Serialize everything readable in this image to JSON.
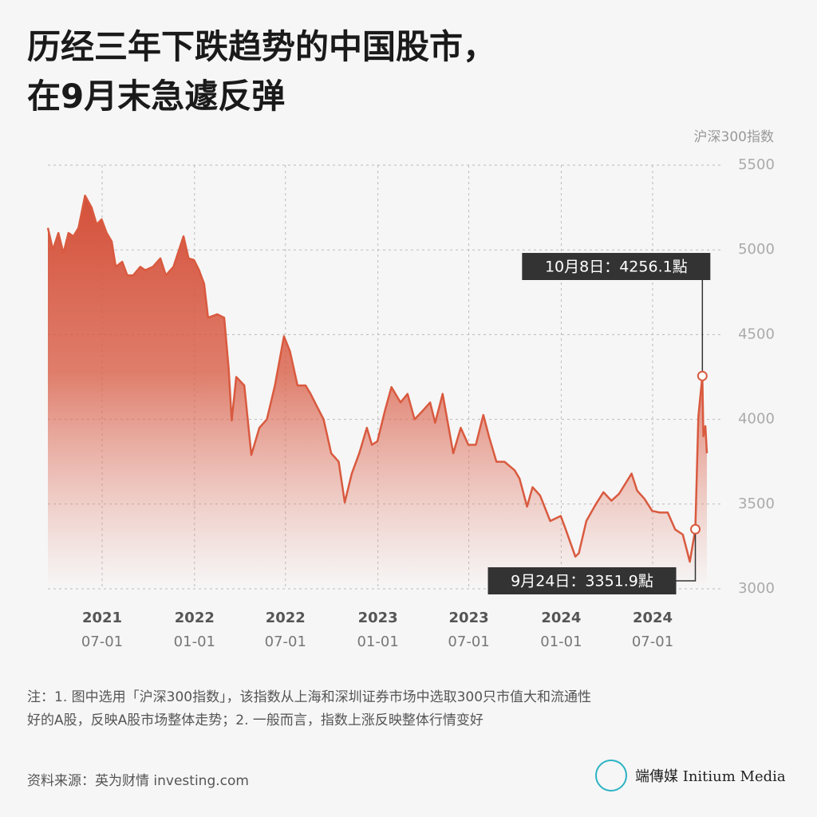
{
  "chart_data": {
    "type": "area",
    "title": [
      "历经三年下跌趋势的中国股市，",
      "在9月末急遽反弹"
    ],
    "ylabel": "沪深300指数",
    "color": "#d95a3f",
    "grid": true,
    "ylim": [
      3000,
      5500
    ],
    "yticks": [
      3000,
      3500,
      4000,
      4500,
      5000,
      5500
    ],
    "xlim": [
      "2021-03-15",
      "2024-10-17"
    ],
    "xticks": [
      {
        "value": "2021-07-01",
        "year": "2021",
        "label": "07-01"
      },
      {
        "value": "2022-01-01",
        "year": "2022",
        "label": "01-01"
      },
      {
        "value": "2022-07-01",
        "year": "2022",
        "label": "07-01"
      },
      {
        "value": "2023-01-01",
        "year": "2023",
        "label": "01-01"
      },
      {
        "value": "2023-07-01",
        "year": "2023",
        "label": "07-01"
      },
      {
        "value": "2024-01-01",
        "year": "2024",
        "label": "01-01"
      },
      {
        "value": "2024-07-01",
        "year": "2024",
        "label": "07-01"
      }
    ],
    "x": [
      "2021-03-15",
      "2021-03-25",
      "2021-04-05",
      "2021-04-15",
      "2021-04-25",
      "2021-05-05",
      "2021-05-15",
      "2021-05-28",
      "2021-06-10",
      "2021-06-20",
      "2021-06-30",
      "2021-07-10",
      "2021-07-20",
      "2021-07-28",
      "2021-08-10",
      "2021-08-20",
      "2021-09-01",
      "2021-09-15",
      "2021-09-25",
      "2021-10-10",
      "2021-10-25",
      "2021-11-05",
      "2021-11-20",
      "2021-12-10",
      "2021-12-20",
      "2021-12-31",
      "2022-01-10",
      "2022-01-20",
      "2022-01-28",
      "2022-02-15",
      "2022-03-01",
      "2022-03-10",
      "2022-03-16",
      "2022-03-25",
      "2022-04-10",
      "2022-04-24",
      "2022-05-10",
      "2022-05-25",
      "2022-06-10",
      "2022-06-28",
      "2022-07-10",
      "2022-07-25",
      "2022-08-10",
      "2022-08-20",
      "2022-09-01",
      "2022-09-15",
      "2022-09-30",
      "2022-10-15",
      "2022-10-27",
      "2022-11-10",
      "2022-11-25",
      "2022-12-10",
      "2022-12-20",
      "2022-12-31",
      "2023-01-15",
      "2023-01-28",
      "2023-02-15",
      "2023-03-01",
      "2023-03-15",
      "2023-03-31",
      "2023-04-15",
      "2023-04-25",
      "2023-05-10",
      "2023-05-31",
      "2023-06-15",
      "2023-06-30",
      "2023-07-15",
      "2023-07-30",
      "2023-08-10",
      "2023-08-25",
      "2023-09-10",
      "2023-09-30",
      "2023-10-10",
      "2023-10-25",
      "2023-11-05",
      "2023-11-20",
      "2023-12-10",
      "2023-12-31",
      "2024-01-10",
      "2024-01-29",
      "2024-02-05",
      "2024-02-20",
      "2024-03-10",
      "2024-03-25",
      "2024-04-10",
      "2024-04-25",
      "2024-05-20",
      "2024-05-31",
      "2024-06-15",
      "2024-06-30",
      "2024-07-15",
      "2024-07-31",
      "2024-08-15",
      "2024-08-30",
      "2024-09-13",
      "2024-09-24",
      "2024-09-30",
      "2024-10-08",
      "2024-10-10",
      "2024-10-14",
      "2024-10-17"
    ],
    "values": [
      5130,
      5000,
      5100,
      4980,
      5100,
      5080,
      5130,
      5320,
      5250,
      5150,
      5180,
      5100,
      5050,
      4900,
      4930,
      4850,
      4850,
      4900,
      4880,
      4900,
      4950,
      4850,
      4900,
      5080,
      4950,
      4940,
      4880,
      4800,
      4600,
      4620,
      4600,
      4300,
      3993,
      4250,
      4200,
      3790,
      3950,
      4000,
      4200,
      4490,
      4400,
      4200,
      4200,
      4150,
      4080,
      4000,
      3800,
      3750,
      3510,
      3680,
      3800,
      3950,
      3850,
      3870,
      4050,
      4190,
      4100,
      4150,
      4000,
      4050,
      4100,
      3980,
      4150,
      3800,
      3950,
      3850,
      3850,
      4026,
      3900,
      3750,
      3750,
      3700,
      3650,
      3485,
      3600,
      3550,
      3400,
      3430,
      3350,
      3190,
      3210,
      3400,
      3500,
      3570,
      3520,
      3560,
      3680,
      3580,
      3530,
      3460,
      3450,
      3450,
      3350,
      3320,
      3160,
      3351.9,
      4017,
      4256.1,
      3900,
      3960,
      3800
    ],
    "annotations": [
      {
        "text": "10月8日：4256.1點",
        "x": "2024-10-08",
        "value": 4256.1,
        "position": "above"
      },
      {
        "text": "9月24日：3351.9點",
        "x": "2024-09-24",
        "value": 3351.9,
        "position": "below"
      }
    ]
  },
  "notes": "注：1. 图中选用「沪深300指数」，该指数从上海和深圳证券市场中选取300只市值大和流通性好的A股，反映A股市场整体走势；2. 一般而言，指数上涨反映整体行情变好",
  "source": "资料来源：英为财情 investing.com",
  "brand": "端傳媒 Initium Media"
}
